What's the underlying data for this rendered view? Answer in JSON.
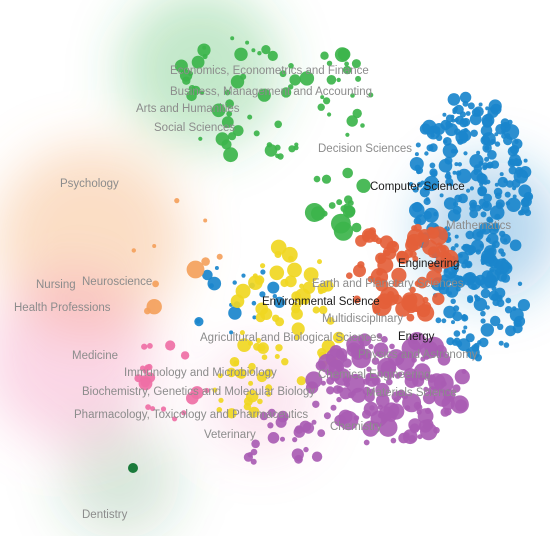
{
  "chart_data": {
    "type": "scatter",
    "title": "",
    "xlabel": "",
    "ylabel": "",
    "grid": false,
    "legend": "none",
    "colors": {
      "Computer Science": "#1a86cc",
      "Engineering": "#e4603a",
      "Environmental Science": "#f0d722",
      "Energy": "#a95cb3",
      "Social Sciences": "#3cb44b",
      "Psychology": "#f4a15c",
      "Medicine": "#ef6fa5",
      "Dentistry": "#1a7a3a"
    },
    "labels": [
      {
        "text": "Economics, Econometrics and Finance",
        "emphasis": "muted"
      },
      {
        "text": "Business, Management and Accounting",
        "emphasis": "muted"
      },
      {
        "text": "Arts and Humanities",
        "emphasis": "muted"
      },
      {
        "text": "Social Sciences",
        "emphasis": "muted"
      },
      {
        "text": "Decision Sciences",
        "emphasis": "muted"
      },
      {
        "text": "Computer Science",
        "emphasis": "dark"
      },
      {
        "text": "Psychology",
        "emphasis": "muted"
      },
      {
        "text": "Mathematics",
        "emphasis": "muted"
      },
      {
        "text": "Engineering",
        "emphasis": "dark"
      },
      {
        "text": "Nursing",
        "emphasis": "muted"
      },
      {
        "text": "Neuroscience",
        "emphasis": "muted"
      },
      {
        "text": "Earth and Planetary Sciences",
        "emphasis": "muted"
      },
      {
        "text": "Health Professions",
        "emphasis": "muted"
      },
      {
        "text": "Environmental Science",
        "emphasis": "dark"
      },
      {
        "text": "Multidisciplinary",
        "emphasis": "muted"
      },
      {
        "text": "Agricultural and Biological Sciences",
        "emphasis": "muted"
      },
      {
        "text": "Energy",
        "emphasis": "dark"
      },
      {
        "text": "Medicine",
        "emphasis": "muted"
      },
      {
        "text": "Physics and Astronomy",
        "emphasis": "muted"
      },
      {
        "text": "Immunology and Microbiology",
        "emphasis": "muted"
      },
      {
        "text": "Chemical Engineering",
        "emphasis": "muted"
      },
      {
        "text": "Biochemistry, Genetics and Molecular Biology",
        "emphasis": "muted"
      },
      {
        "text": "Materials Science",
        "emphasis": "muted"
      },
      {
        "text": "Pharmacology, Toxicology and Pharmaceutics",
        "emphasis": "muted"
      },
      {
        "text": "Chemistry",
        "emphasis": "muted"
      },
      {
        "text": "Veterinary",
        "emphasis": "muted"
      },
      {
        "text": "Dentistry",
        "emphasis": "muted"
      }
    ]
  }
}
